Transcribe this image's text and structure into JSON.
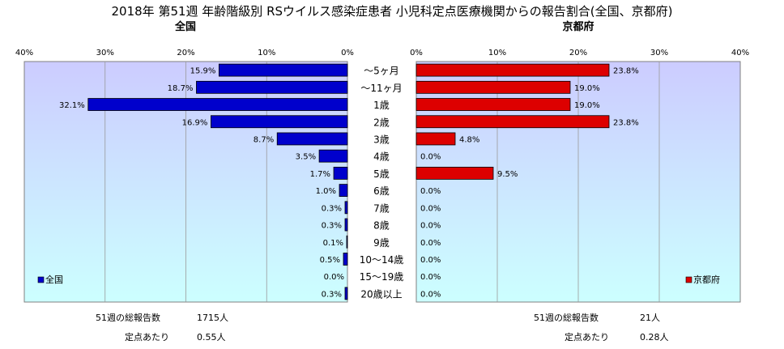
{
  "chart_data": {
    "type": "bar",
    "title": "2018年 第51週 年齢階級別 RSウイルス感染症患者 小児科定点医療機関からの報告割合(全国、京都府)",
    "categories": [
      "～5ヶ月",
      "～11ヶ月",
      "1歳",
      "2歳",
      "3歳",
      "4歳",
      "5歳",
      "6歳",
      "7歳",
      "8歳",
      "9歳",
      "10～14歳",
      "15～19歳",
      "20歳以上"
    ],
    "axis_ticks": [
      "40%",
      "30%",
      "20%",
      "10%",
      "0%",
      "0%",
      "10%",
      "20%",
      "30%",
      "40%"
    ],
    "xlim": [
      0,
      40
    ],
    "colors": {
      "national": "#0000cc",
      "kyoto": "#dd0000",
      "national_bg_top": "#ccccff",
      "national_bg_bottom": "#ccffff",
      "kyoto_bg": "#ccffff"
    },
    "panels": [
      {
        "subtitle": "全国",
        "name": "全国",
        "data_labels": [
          "15.9%",
          "18.7%",
          "32.1%",
          "16.9%",
          "8.7%",
          "3.5%",
          "1.7%",
          "1.0%",
          "0.3%",
          "0.3%",
          "0.1%",
          "0.5%",
          "0.0%",
          "0.3%"
        ],
        "values": [
          15.9,
          18.7,
          32.1,
          16.9,
          8.7,
          3.5,
          1.7,
          1.0,
          0.3,
          0.3,
          0.1,
          0.5,
          0.0,
          0.3
        ],
        "legend": "全国",
        "legend_position": "bottom-left",
        "stats": [
          {
            "label": "51週の総報告数",
            "value": "1715人"
          },
          {
            "label": "定点あたり",
            "value": "0.55人"
          }
        ]
      },
      {
        "subtitle": "京都府",
        "name": "京都府",
        "data_labels": [
          "23.8%",
          "19.0%",
          "19.0%",
          "23.8%",
          "4.8%",
          "0.0%",
          "9.5%",
          "0.0%",
          "0.0%",
          "0.0%",
          "0.0%",
          "0.0%",
          "0.0%",
          "0.0%"
        ],
        "values": [
          23.8,
          19.0,
          19.0,
          23.8,
          4.8,
          0.0,
          9.5,
          0.0,
          0.0,
          0.0,
          0.0,
          0.0,
          0.0,
          0.0
        ],
        "legend": "京都府",
        "legend_position": "bottom-right",
        "stats": [
          {
            "label": "51週の総報告数",
            "value": "21人"
          },
          {
            "label": "定点あたり",
            "value": "0.28人"
          }
        ]
      }
    ]
  }
}
